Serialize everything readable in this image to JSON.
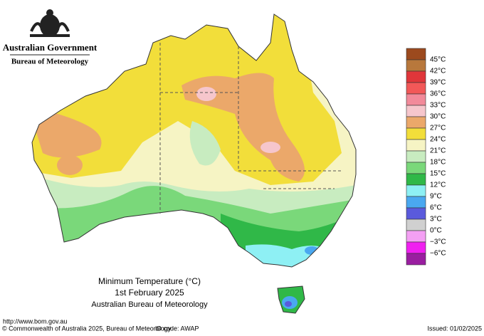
{
  "header": {
    "government": "Australian Government",
    "bureau": "Bureau of Meteorology"
  },
  "map_title": {
    "line1": "Minimum Temperature (°C)",
    "line2": "1st February 2025",
    "line3": "Australian Bureau of Meteorology"
  },
  "legend": {
    "items": [
      {
        "label": "45°C",
        "color": "#9c4a1e"
      },
      {
        "label": "42°C",
        "color": "#b8783c"
      },
      {
        "label": "39°C",
        "color": "#e0363a"
      },
      {
        "label": "36°C",
        "color": "#f25858"
      },
      {
        "label": "33°C",
        "color": "#f28a9a"
      },
      {
        "label": "30°C",
        "color": "#f6c6cc"
      },
      {
        "label": "27°C",
        "color": "#eba86a"
      },
      {
        "label": "24°C",
        "color": "#f2de3a"
      },
      {
        "label": "21°C",
        "color": "#f6f4c4"
      },
      {
        "label": "18°C",
        "color": "#c8ecc0"
      },
      {
        "label": "15°C",
        "color": "#7ad87a"
      },
      {
        "label": "12°C",
        "color": "#30b848"
      },
      {
        "label": "9°C",
        "color": "#8ef0f4"
      },
      {
        "label": "6°C",
        "color": "#4aa8f0"
      },
      {
        "label": "3°C",
        "color": "#5a5adc"
      },
      {
        "label": "0°C",
        "color": "#d0d0d0"
      },
      {
        "label": "−3°C",
        "color": "#f4a0f4"
      },
      {
        "label": "−6°C",
        "color": "#f020f0"
      },
      {
        "label": "",
        "color": "#9a1ea0"
      }
    ]
  },
  "footer": {
    "url": "http://www.bom.gov.au",
    "copyright": "© Commonwealth of Australia 2025, Bureau of Meteorology",
    "id_code": "ID code: AWAP",
    "issued": "Issued: 01/02/2025"
  }
}
